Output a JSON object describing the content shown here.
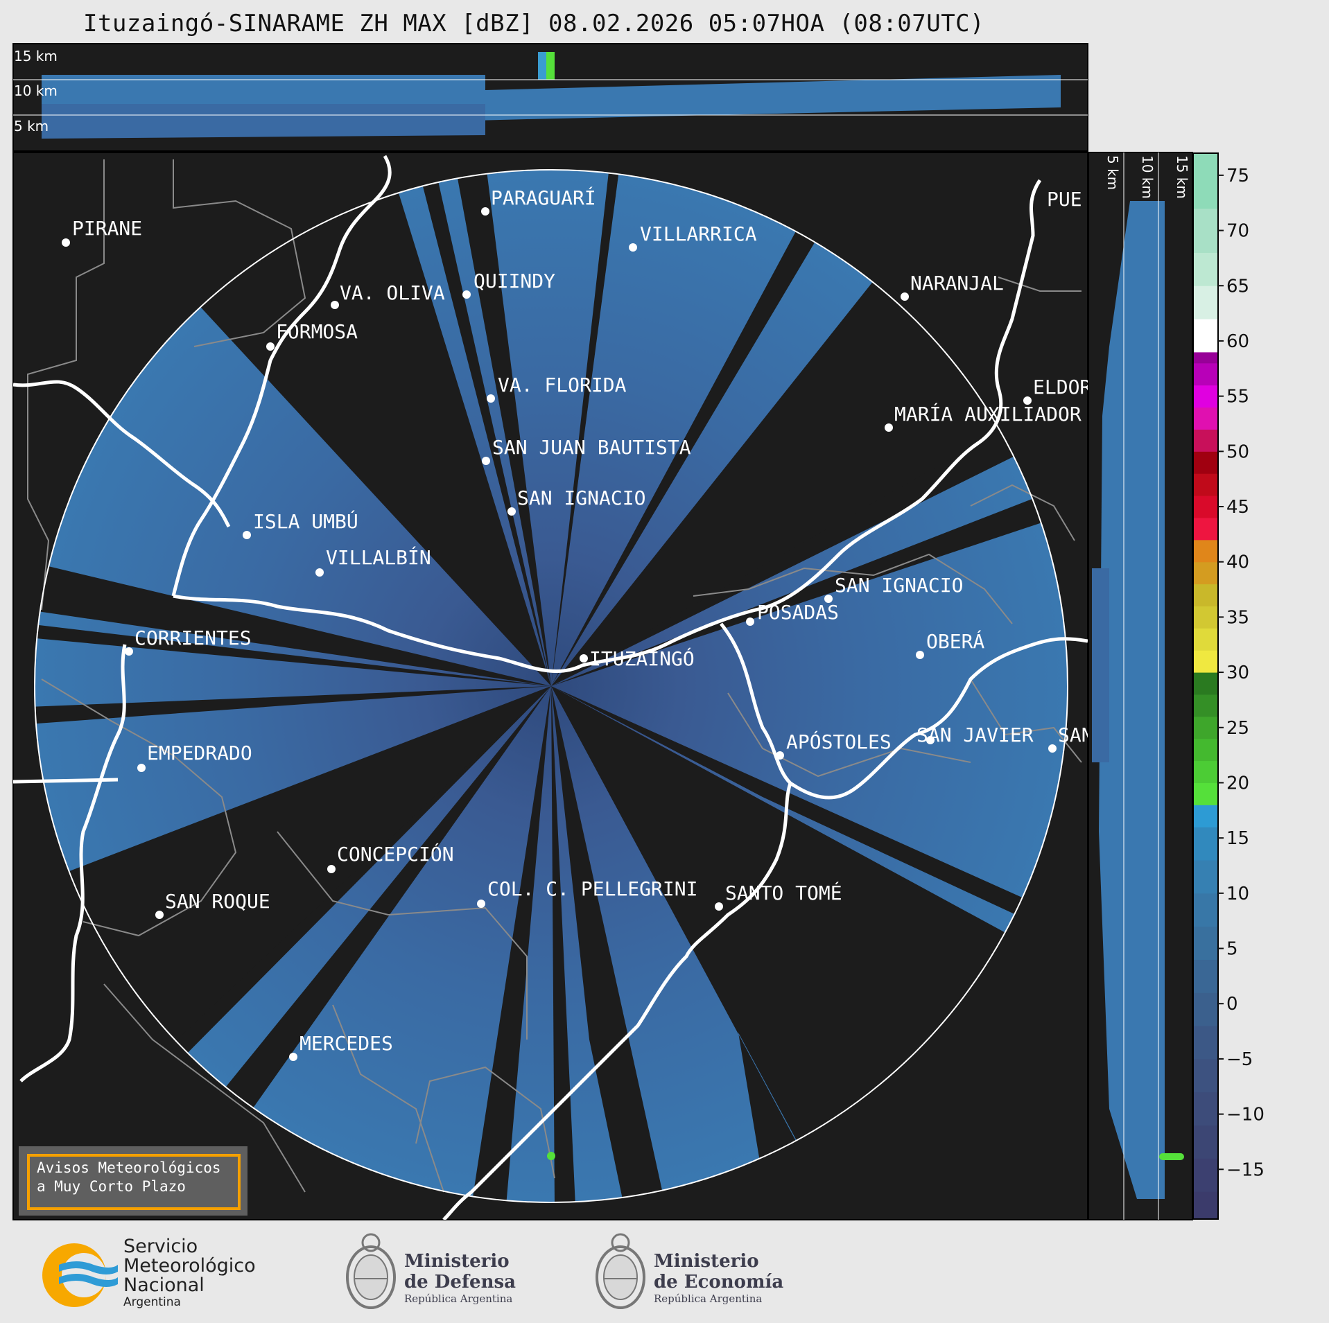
{
  "title": "Ituzaingó-SINARAME ZH MAX [dBZ] 08.02.2026 05:07HOA (08:07UTC)",
  "top_panel_altitudes": [
    "15 km",
    "10 km",
    "5 km"
  ],
  "side_panel_altitudes": [
    "5 km",
    "10 km",
    "15 km"
  ],
  "colorbar": {
    "ticks": [
      75,
      70,
      65,
      60,
      55,
      50,
      45,
      40,
      35,
      30,
      25,
      20,
      15,
      10,
      5,
      0,
      -5,
      -10,
      -15
    ],
    "tick_labels": [
      "75",
      "70",
      "65",
      "60",
      "55",
      "50",
      "45",
      "40",
      "35",
      "30",
      "25",
      "20",
      "15",
      "10",
      "5",
      "0",
      "−5",
      "−10",
      "−15"
    ],
    "range": [
      -19.5,
      77
    ]
  },
  "cities": [
    {
      "name": "PARAGUARÍ"
    },
    {
      "name": "PIRANE"
    },
    {
      "name": "VILLARRICA"
    },
    {
      "name": "QUIINDY"
    },
    {
      "name": "VA. OLIVA"
    },
    {
      "name": "NARANJAL"
    },
    {
      "name": "FORMOSA"
    },
    {
      "name": "PUE"
    },
    {
      "name": "VA. FLORIDA"
    },
    {
      "name": "ELDOR"
    },
    {
      "name": "MARÍA AUXILIADOR"
    },
    {
      "name": "SAN JUAN BAUTISTA"
    },
    {
      "name": "SAN IGNACIO"
    },
    {
      "name": "ISLA UMBÚ"
    },
    {
      "name": "VILLALBÍN"
    },
    {
      "name": "SAN IGNACIO"
    },
    {
      "name": "POSADAS"
    },
    {
      "name": "CORRIENTES"
    },
    {
      "name": "ITUZAINGÓ"
    },
    {
      "name": "OBERÁ"
    },
    {
      "name": "APÓSTOLES"
    },
    {
      "name": "SAN JAVIER"
    },
    {
      "name": "SAN"
    },
    {
      "name": "EMPEDRADO"
    },
    {
      "name": "CONCEPCIÓN"
    },
    {
      "name": "COL. C. PELLEGRINI"
    },
    {
      "name": "SANTO TOMÉ"
    },
    {
      "name": "SAN ROQUE"
    },
    {
      "name": "MERCEDES"
    }
  ],
  "warning_box": {
    "line1": "Avisos Meteorológicos",
    "line2": "a Muy Corto Plazo"
  },
  "logos": {
    "smn": {
      "line1": "Servicio",
      "line2": "Meteorológico",
      "line3": "Nacional",
      "line4": "Argentina"
    },
    "defensa": {
      "line1": "Ministerio",
      "line2": "de Defensa",
      "line3": "República Argentina"
    },
    "economia": {
      "line1": "Ministerio",
      "line2": "de Economía",
      "line3": "República Argentina"
    }
  },
  "colors": {
    "echo": "#3a76ad",
    "echo_inner": "#3d5f95",
    "background": "#1c1c1c",
    "border": "#ffffff",
    "highlight": "#55e03a",
    "frame": "#e8e8e8",
    "warning_border": "#f5a000"
  }
}
